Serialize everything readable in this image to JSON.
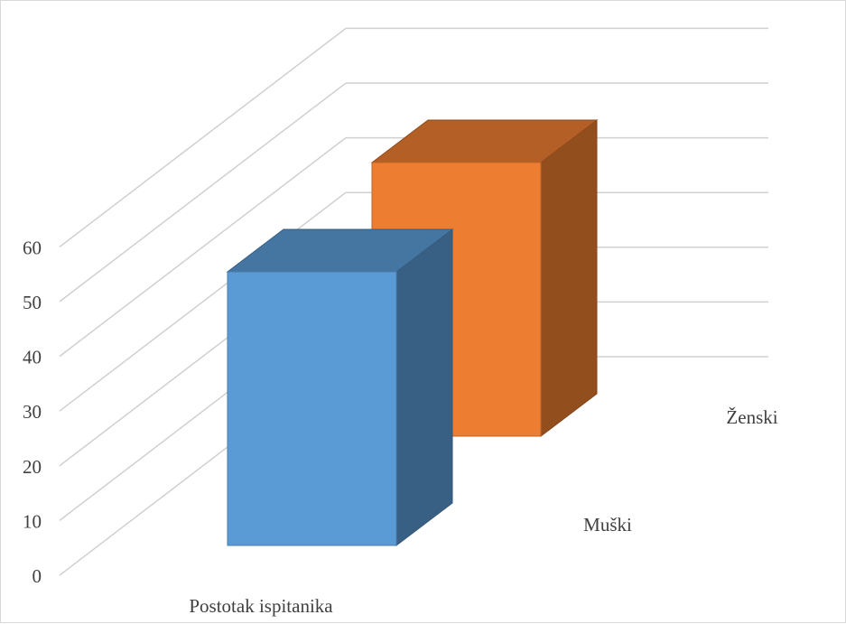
{
  "chart_data": {
    "type": "bar",
    "subtype": "3d-column",
    "categories": [
      "Postotak ispitanika"
    ],
    "series": [
      {
        "name": "Muški",
        "values": [
          50
        ],
        "color": "#5b9bd5"
      },
      {
        "name": "Ženski",
        "values": [
          50
        ],
        "color": "#ed7d31"
      }
    ],
    "y_ticks": [
      "0",
      "10",
      "20",
      "30",
      "40",
      "50",
      "60"
    ],
    "ylim": [
      0,
      60
    ],
    "grid": true,
    "legend": "none"
  }
}
